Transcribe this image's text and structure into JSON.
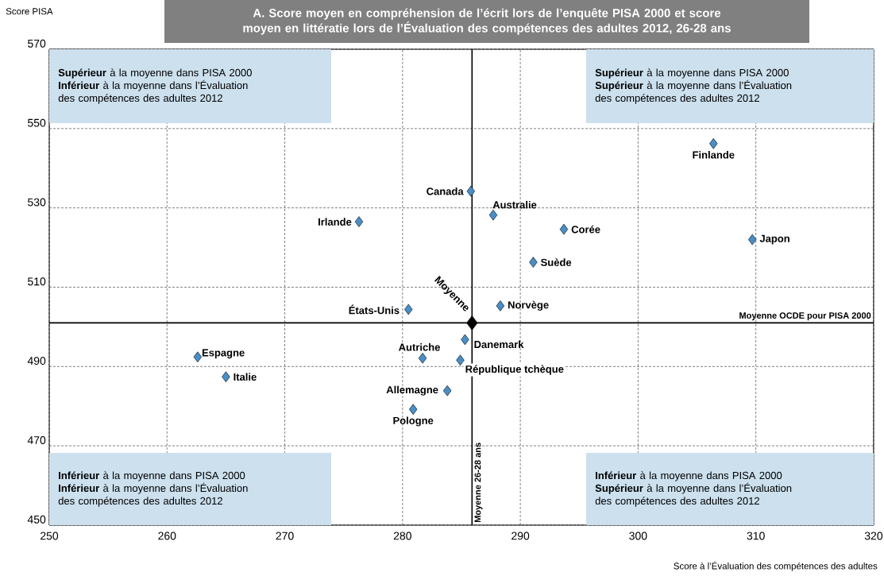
{
  "chart_data": {
    "type": "scatter",
    "title": "A. Score moyen en compréhension de l’écrit lors de l’enquête PISA 2000 et score moyen en littératie lors de l’Évaluation des compétences des adultes 2012, 26-28 ans",
    "xlabel": "Score à l’Évaluation des compétences des adultes",
    "ylabel": "Score PISA",
    "xlim": [
      250,
      320
    ],
    "ylim": [
      450,
      570
    ],
    "xticks": [
      250,
      260,
      270,
      280,
      290,
      300,
      310,
      320
    ],
    "yticks": [
      450,
      470,
      490,
      510,
      530,
      550,
      570
    ],
    "grid": true,
    "marker": "diamond",
    "series": [
      {
        "name": "Canada",
        "color": "#4a8ec6",
        "x": [
          285.8
        ],
        "values": [
          534.2
        ]
      },
      {
        "name": "Australie",
        "color": "#4a8ec6",
        "x": [
          287.7
        ],
        "values": [
          528.2
        ]
      },
      {
        "name": "Irlande",
        "color": "#4a8ec6",
        "x": [
          276.3
        ],
        "values": [
          526.5
        ]
      },
      {
        "name": "Corée",
        "color": "#4a8ec6",
        "x": [
          293.7
        ],
        "values": [
          524.6
        ]
      },
      {
        "name": "Suède",
        "color": "#4a8ec6",
        "x": [
          291.1
        ],
        "values": [
          516.3
        ]
      },
      {
        "name": "États-Unis",
        "color": "#4a8ec6",
        "x": [
          280.5
        ],
        "values": [
          504.4
        ]
      },
      {
        "name": "Norvège",
        "color": "#4a8ec6",
        "x": [
          288.3
        ],
        "values": [
          505.3
        ]
      },
      {
        "name": "Danemark",
        "color": "#4a8ec6",
        "x": [
          285.3
        ],
        "values": [
          496.8
        ]
      },
      {
        "name": "Autriche",
        "color": "#4a8ec6",
        "x": [
          281.7
        ],
        "values": [
          492.1
        ]
      },
      {
        "name": "République tchèque",
        "color": "#4a8ec6",
        "x": [
          284.9
        ],
        "values": [
          491.6
        ]
      },
      {
        "name": "Allemagne",
        "color": "#4a8ec6",
        "x": [
          283.8
        ],
        "values": [
          483.9
        ]
      },
      {
        "name": "Pologne",
        "color": "#4a8ec6",
        "x": [
          280.9
        ],
        "values": [
          479.2
        ]
      },
      {
        "name": "Finlande",
        "color": "#4a8ec6",
        "x": [
          306.4
        ],
        "values": [
          546.2
        ]
      },
      {
        "name": "Japon",
        "color": "#4a8ec6",
        "x": [
          309.7
        ],
        "values": [
          522.0
        ]
      },
      {
        "name": "Espagne",
        "color": "#4a8ec6",
        "x": [
          262.6
        ],
        "values": [
          492.4
        ]
      },
      {
        "name": "Italie",
        "color": "#4a8ec6",
        "x": [
          265.0
        ],
        "values": [
          487.4
        ]
      },
      {
        "name": "Moyenne",
        "color": "#000000",
        "x": [
          285.9
        ],
        "values": [
          501.0
        ]
      }
    ],
    "ref_lines": [
      {
        "axis": "x",
        "value": 285.9,
        "label": "Moyenne 26-28 ans",
        "color": "#000000"
      },
      {
        "axis": "y",
        "value": 501.0,
        "label": "Moyenne OCDE pour PISA 2000",
        "color": "#000000"
      }
    ],
    "annotations": [
      "**Supérieur** à la moyenne dans PISA 2000 **Inférieur** à la moyenne dans l’Évaluation des compétences des adultes 2012",
      "**Supérieur** à la moyenne dans PISA 2000 **Supérieur** à la moyenne dans l’Évaluation des compétences des adultes 2012",
      "**Inférieur** à la moyenne dans PISA 2000 **Inférieur** à la moyenne dans l’Évaluation des compétences des adultes 2012",
      "**Inférieur** à la moyenne dans PISA 2000 **Supérieur** à la moyenne dans l’Évaluation des compétences des adultes 2012"
    ]
  }
}
